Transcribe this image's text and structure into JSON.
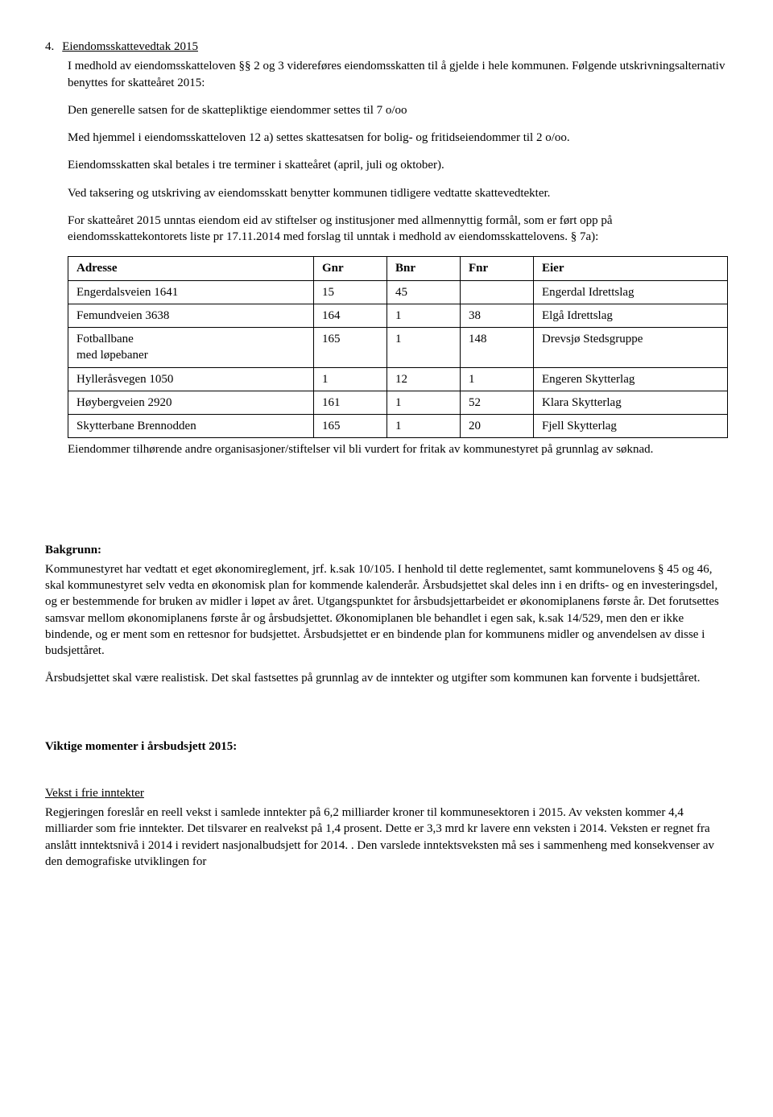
{
  "item4": {
    "number": "4.",
    "title": "Eiendomsskattevedtak 2015",
    "p1": "I medhold av eiendomsskatteloven §§ 2 og 3 videreføres eiendomsskatten til å gjelde i hele kommunen. Følgende utskrivningsalternativ benyttes for skatteåret 2015:",
    "p2": "Den generelle satsen for de skattepliktige eiendommer settes til 7 o/oo",
    "p3": "Med hjemmel i eiendomsskatteloven 12 a) settes skattesatsen for bolig- og fritidseiendommer til 2 o/oo.",
    "p4": "Eiendomsskatten skal betales i tre terminer i skatteåret (april, juli og oktober).",
    "p5": "Ved taksering og utskriving av eiendomsskatt benytter kommunen tidligere vedtatte skattevedtekter.",
    "p6": "For skatteåret 2015 unntas eiendom eid av stiftelser og institusjoner med allmennyttig formål, som er ført opp på eiendomsskattekontorets liste pr 17.11.2014 med forslag til unntak i medhold av eiendomsskattelovens. § 7a):"
  },
  "table": {
    "headers": {
      "adresse": "Adresse",
      "gnr": "Gnr",
      "bnr": "Bnr",
      "fnr": "Fnr",
      "eier": "Eier"
    },
    "rows": [
      {
        "adresse": "Engerdalsveien 1641",
        "gnr": "15",
        "bnr": "45",
        "fnr": "",
        "eier": "Engerdal Idrettslag"
      },
      {
        "adresse": "Femundveien 3638",
        "gnr": "164",
        "bnr": "1",
        "fnr": "38",
        "eier": "Elgå Idrettslag"
      },
      {
        "adresse": "Fotballbane\nmed løpebaner",
        "gnr": "165",
        "bnr": "1",
        "fnr": "148",
        "eier": "Drevsjø Stedsgruppe"
      },
      {
        "adresse": "Hylleråsvegen 1050",
        "gnr": "1",
        "bnr": "12",
        "fnr": "1",
        "eier": "Engeren Skytterlag"
      },
      {
        "adresse": "Høybergveien 2920",
        "gnr": "161",
        "bnr": "1",
        "fnr": "52",
        "eier": "Klara Skytterlag"
      },
      {
        "adresse": "Skytterbane Brennodden",
        "gnr": "165",
        "bnr": "1",
        "fnr": "20",
        "eier": "Fjell Skytterlag"
      }
    ]
  },
  "afterTable": "Eiendommer tilhørende andre organisasjoner/stiftelser vil bli vurdert for fritak av kommunestyret på grunnlag av søknad.",
  "bakgrunn": {
    "heading": "Bakgrunn:",
    "p1": "Kommunestyret har vedtatt et eget økonomireglement, jrf. k.sak 10/105. I henhold til dette reglementet, samt kommunelovens § 45 og 46, skal kommunestyret selv vedta en økonomisk plan for kommende kalenderår. Årsbudsjettet skal deles inn i en drifts- og en investeringsdel, og er bestemmende for bruken av midler i løpet av året. Utgangspunktet for årsbudsjettarbeidet er økonomiplanens første år. Det forutsettes samsvar mellom økonomiplanens første år og årsbudsjettet. Økonomiplanen ble behandlet i egen sak, k.sak 14/529, men den er ikke bindende, og er ment som en rettesnor for budsjettet. Årsbudsjettet er en bindende plan for kommunens midler og anvendelsen av disse i budsjettåret.",
    "p2": "Årsbudsjettet skal være realistisk. Det skal fastsettes på grunnlag av de inntekter og utgifter som kommunen kan forvente i budsjettåret."
  },
  "viktige": {
    "heading": "Viktige momenter i årsbudsjett 2015:"
  },
  "vekst": {
    "heading": "Vekst i frie inntekter",
    "p1": "Regjeringen foreslår en reell vekst i samlede inntekter på 6,2 milliarder kroner til kommunesektoren i 2015. Av veksten kommer 4,4 milliarder som frie inntekter. Det tilsvarer en realvekst på 1,4 prosent. Dette er 3,3 mrd kr lavere enn veksten i 2014. Veksten er regnet fra anslått inntektsnivå i 2014 i revidert nasjonalbudsjett for 2014. . Den varslede inntektsveksten må ses i sammenheng med konsekvenser av den demografiske utviklingen for"
  }
}
